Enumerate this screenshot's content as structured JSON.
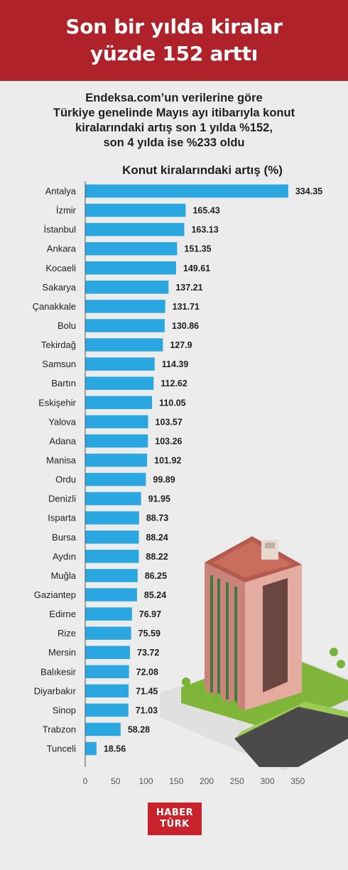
{
  "header": {
    "title_line1": "Son bir yılda kiralar",
    "title_line2": "yüzde 152 arttı"
  },
  "subtitle": {
    "line1": "Endeksa.com’un verilerine göre",
    "line2": "Türkiye genelinde Mayıs ayı itibarıyla konut",
    "line3": "kiralarındaki artış son 1 yılda %152,",
    "line4": "son 4 yılda ise %233 oldu"
  },
  "logo": {
    "line1": "HABER",
    "line2": "TÜRK"
  },
  "colors": {
    "banner": "#b0222a",
    "bar": "#2aa6e0",
    "logo": "#c8232c"
  },
  "chart_data": {
    "type": "bar",
    "orientation": "horizontal",
    "title": "Konut kiralarındaki artış (%)",
    "categories": [
      "Antalya",
      "İzmir",
      "İstanbul",
      "Ankara",
      "Kocaeli",
      "Sakarya",
      "Çanakkale",
      "Bolu",
      "Tekirdağ",
      "Samsun",
      "Bartın",
      "Eskişehir",
      "Yalova",
      "Adana",
      "Manisa",
      "Ordu",
      "Denizli",
      "Isparta",
      "Bursa",
      "Aydın",
      "Muğla",
      "Gaziantep",
      "Edirne",
      "Rize",
      "Mersin",
      "Balıkesir",
      "Diyarbakır",
      "Sinop",
      "Trabzon",
      "Tunceli"
    ],
    "values": [
      334.35,
      165.43,
      163.13,
      151.35,
      149.61,
      137.21,
      131.71,
      130.86,
      127.9,
      114.39,
      112.62,
      110.05,
      103.57,
      103.26,
      101.92,
      99.89,
      91.95,
      88.73,
      88.24,
      88.22,
      86.25,
      85.24,
      76.97,
      75.59,
      73.72,
      72.08,
      71.45,
      71.03,
      58.28,
      18.56
    ],
    "value_labels": [
      "334.35",
      "165.43",
      "163.13",
      "151.35",
      "149.61",
      "137.21",
      "131.71",
      "130.86",
      "127.9",
      "114.39",
      "112.62",
      "110.05",
      "103.57",
      "103.26",
      "101.92",
      "99.89",
      "91.95",
      "88.73",
      "88.24",
      "88.22",
      "86.25",
      "85.24",
      "76.97",
      "75.59",
      "73.72",
      "72.08",
      "71.45",
      "71.03",
      "58.28",
      "18.56"
    ],
    "xticks": [
      0,
      50,
      100,
      150,
      200,
      250,
      300,
      350
    ],
    "xlim": [
      0,
      350
    ],
    "grid": false
  }
}
